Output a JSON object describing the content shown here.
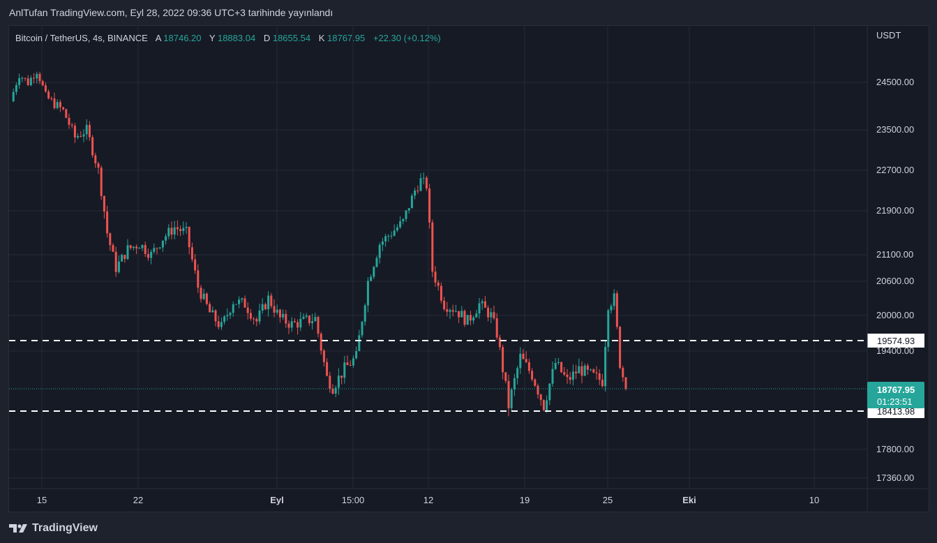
{
  "header": {
    "published_text": "AnlTufan TradingView.com, Eyl 28, 2022 09:36 UTC+3 tarihinde yayınlandı"
  },
  "legend": {
    "symbol": "Bitcoin / TetherUS, 4s, BINANCE",
    "open_label": "A",
    "open_value": "18746.20",
    "high_label": "Y",
    "high_value": "18883.04",
    "low_label": "D",
    "low_value": "18655.54",
    "close_label": "K",
    "close_value": "18767.95",
    "change": "+22.30 (+0.12%)"
  },
  "price_scale": {
    "currency": "USDT",
    "current_price": "18767.95",
    "countdown": "01:23:51"
  },
  "footer": {
    "brand": "TradingView"
  },
  "colors": {
    "up": "#26a69a",
    "down": "#ef5350",
    "background": "#161a25",
    "grid": "#252a36",
    "text": "#d1d4dc",
    "level_line": "#ffffff"
  },
  "chart_data": {
    "type": "candlestick",
    "symbol": "Bitcoin / TetherUS",
    "interval": "4s",
    "exchange": "BINANCE",
    "y_ticks": [
      24500,
      23500,
      22700,
      21900,
      21100,
      20600,
      20000,
      19400,
      17800,
      17360
    ],
    "x_ticks": [
      "15",
      "22",
      "Eyl",
      "15:00",
      "12",
      "19",
      "25",
      "Eki",
      "10"
    ],
    "horizontal_levels": [
      19574.93,
      18413.98
    ],
    "last_price": 18767.95,
    "price_path": [
      {
        "t": 0,
        "p": 24100
      },
      {
        "t": 3,
        "p": 24700
      },
      {
        "t": 6,
        "p": 24500
      },
      {
        "t": 9,
        "p": 24800
      },
      {
        "t": 12,
        "p": 24200
      },
      {
        "t": 15,
        "p": 24050
      },
      {
        "t": 18,
        "p": 23900
      },
      {
        "t": 22,
        "p": 23350
      },
      {
        "t": 26,
        "p": 23500
      },
      {
        "t": 30,
        "p": 22700
      },
      {
        "t": 33,
        "p": 21500
      },
      {
        "t": 36,
        "p": 20850
      },
      {
        "t": 40,
        "p": 21200
      },
      {
        "t": 44,
        "p": 21300
      },
      {
        "t": 48,
        "p": 21100
      },
      {
        "t": 52,
        "p": 21400
      },
      {
        "t": 56,
        "p": 21600
      },
      {
        "t": 60,
        "p": 21500
      },
      {
        "t": 64,
        "p": 20500
      },
      {
        "t": 68,
        "p": 20050
      },
      {
        "t": 72,
        "p": 19800
      },
      {
        "t": 76,
        "p": 20250
      },
      {
        "t": 80,
        "p": 20200
      },
      {
        "t": 84,
        "p": 19900
      },
      {
        "t": 88,
        "p": 20300
      },
      {
        "t": 92,
        "p": 19950
      },
      {
        "t": 96,
        "p": 19850
      },
      {
        "t": 100,
        "p": 19900
      },
      {
        "t": 104,
        "p": 19950
      },
      {
        "t": 108,
        "p": 18950
      },
      {
        "t": 110,
        "p": 18800
      },
      {
        "t": 114,
        "p": 19100
      },
      {
        "t": 118,
        "p": 19300
      },
      {
        "t": 122,
        "p": 20600
      },
      {
        "t": 126,
        "p": 21300
      },
      {
        "t": 130,
        "p": 21500
      },
      {
        "t": 134,
        "p": 21700
      },
      {
        "t": 138,
        "p": 22300
      },
      {
        "t": 140,
        "p": 22500
      },
      {
        "t": 142,
        "p": 22400
      },
      {
        "t": 144,
        "p": 20800
      },
      {
        "t": 148,
        "p": 20200
      },
      {
        "t": 152,
        "p": 20100
      },
      {
        "t": 156,
        "p": 19900
      },
      {
        "t": 160,
        "p": 20200
      },
      {
        "t": 164,
        "p": 20000
      },
      {
        "t": 166,
        "p": 19700
      },
      {
        "t": 170,
        "p": 18500
      },
      {
        "t": 174,
        "p": 19300
      },
      {
        "t": 178,
        "p": 19000
      },
      {
        "t": 182,
        "p": 18500
      },
      {
        "t": 186,
        "p": 19200
      },
      {
        "t": 190,
        "p": 18900
      },
      {
        "t": 194,
        "p": 19100
      },
      {
        "t": 198,
        "p": 19000
      },
      {
        "t": 202,
        "p": 18900
      },
      {
        "t": 204,
        "p": 20200
      },
      {
        "t": 206,
        "p": 20300
      },
      {
        "t": 208,
        "p": 19200
      },
      {
        "t": 210,
        "p": 18767.95
      }
    ]
  }
}
